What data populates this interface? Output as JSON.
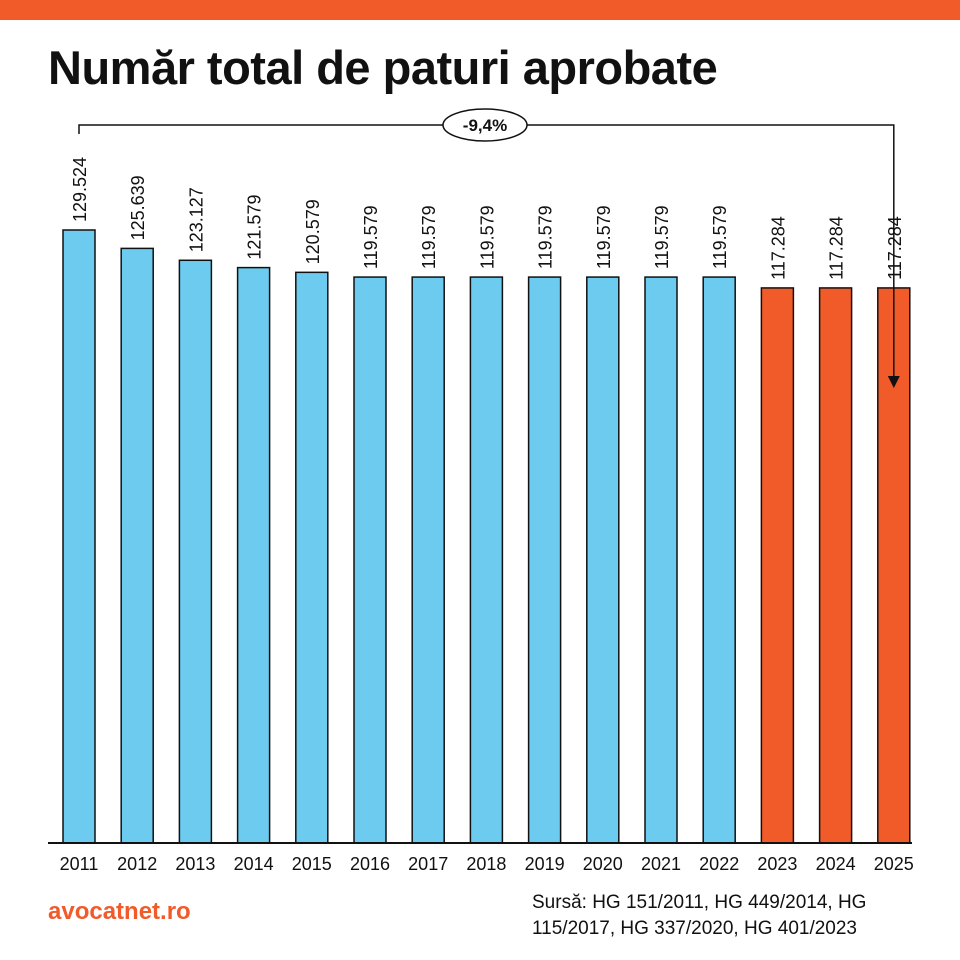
{
  "colors": {
    "accent": "#f15a29",
    "bar_blue": "#6ccbee",
    "bar_orange": "#f15a29",
    "outline": "#111111"
  },
  "title": "Număr total de paturi aprobate",
  "brand": "avocatnet.ro",
  "source": "Sursă: HG 151/2011, HG 449/2014, HG 115/2017, HG 337/2020, HG 401/2023",
  "chart_data": {
    "type": "bar",
    "title": "Număr total de paturi aprobate",
    "xlabel": "",
    "ylabel": "",
    "categories": [
      "2011",
      "2012",
      "2013",
      "2014",
      "2015",
      "2016",
      "2017",
      "2018",
      "2019",
      "2020",
      "2021",
      "2022",
      "2023",
      "2024",
      "2025"
    ],
    "values": [
      129524,
      125639,
      123127,
      121579,
      120579,
      119579,
      119579,
      119579,
      119579,
      119579,
      119579,
      119579,
      117284,
      117284,
      117284
    ],
    "value_labels": [
      "129.524",
      "125.639",
      "123.127",
      "121.579",
      "120.579",
      "119.579",
      "119.579",
      "119.579",
      "119.579",
      "119.579",
      "119.579",
      "119.579",
      "117.284",
      "117.284",
      "117.284"
    ],
    "highlight_from_index": 12,
    "ylim": [
      0,
      129524
    ],
    "grid": false,
    "annotation": {
      "text": "-9,4%",
      "from": "2011",
      "to": "2025"
    }
  }
}
